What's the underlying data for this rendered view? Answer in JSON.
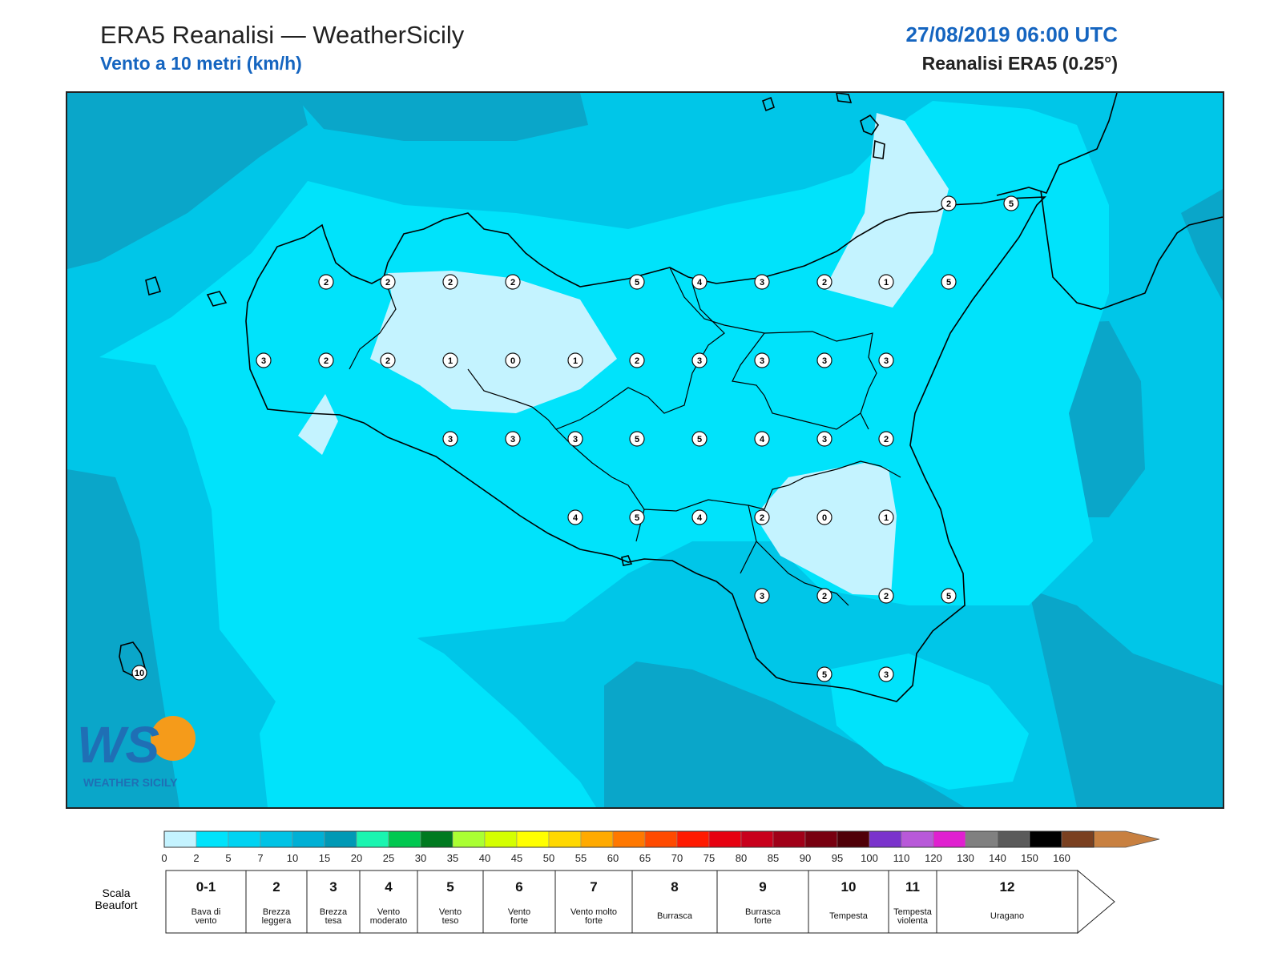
{
  "header": {
    "title": "ERA5 Reanalisi — WeatherSicily",
    "subtitle": "Vento a 10 metri (km/h)",
    "datetime": "27/08/2019 06:00 UTC",
    "source": "Reanalisi ERA5 (0.25°)"
  },
  "logo": {
    "text": "WEATHER SICILY",
    "monogram": "WS"
  },
  "map": {
    "colors": {
      "ocean_deep": "#0aa6c9",
      "ocean_mid": "#00c6e8",
      "ocean_light": "#00e3fb",
      "calm": "#c4f3ff",
      "coast": "#000000"
    },
    "station_values": [
      [
        2,
        2,
        2,
        2,
        5,
        4,
        3,
        2,
        1,
        5
      ],
      [
        3,
        2,
        2,
        1,
        0,
        1,
        2,
        3,
        3,
        3,
        3
      ],
      [
        3,
        3,
        3,
        5,
        5,
        4,
        3,
        2
      ],
      [
        4,
        5,
        4,
        2,
        0,
        1
      ],
      [
        3,
        2,
        2,
        5
      ],
      [
        5,
        3
      ],
      [
        2,
        5
      ],
      [
        10
      ]
    ]
  },
  "colorbar": {
    "ticks": [
      "0",
      "2",
      "5",
      "7",
      "10",
      "15",
      "20",
      "25",
      "30",
      "35",
      "40",
      "45",
      "50",
      "55",
      "60",
      "65",
      "70",
      "75",
      "80",
      "85",
      "90",
      "95",
      "100",
      "110",
      "120",
      "130",
      "140",
      "150",
      "160"
    ],
    "colors": [
      "#c4f3ff",
      "#00e3fb",
      "#00d3f2",
      "#00c3e5",
      "#00b0d5",
      "#0099b5",
      "#1af5b0",
      "#00c850",
      "#007a20",
      "#aaff33",
      "#d4ff00",
      "#ffff00",
      "#ffd800",
      "#ffaa00",
      "#ff7800",
      "#ff4a00",
      "#ff1a00",
      "#e60010",
      "#c8001c",
      "#a00018",
      "#780010",
      "#500008",
      "#7a33cc",
      "#b859d9",
      "#e020d0",
      "#808080",
      "#5a5a5a",
      "#000000",
      "#7a4020",
      "#c88040"
    ]
  },
  "beaufort": {
    "label": "Scala Beaufort",
    "levels": [
      {
        "n": "0-1",
        "desc": "Bava di vento"
      },
      {
        "n": "2",
        "desc": "Brezza leggera"
      },
      {
        "n": "3",
        "desc": "Brezza tesa"
      },
      {
        "n": "4",
        "desc": "Vento moderato"
      },
      {
        "n": "5",
        "desc": "Vento teso"
      },
      {
        "n": "6",
        "desc": "Vento forte"
      },
      {
        "n": "7",
        "desc": "Vento molto forte"
      },
      {
        "n": "8",
        "desc": "Burrasca"
      },
      {
        "n": "9",
        "desc": "Burrasca forte"
      },
      {
        "n": "10",
        "desc": "Tempesta"
      },
      {
        "n": "11",
        "desc": "Tempesta violenta"
      },
      {
        "n": "12",
        "desc": "Uragano"
      }
    ]
  }
}
